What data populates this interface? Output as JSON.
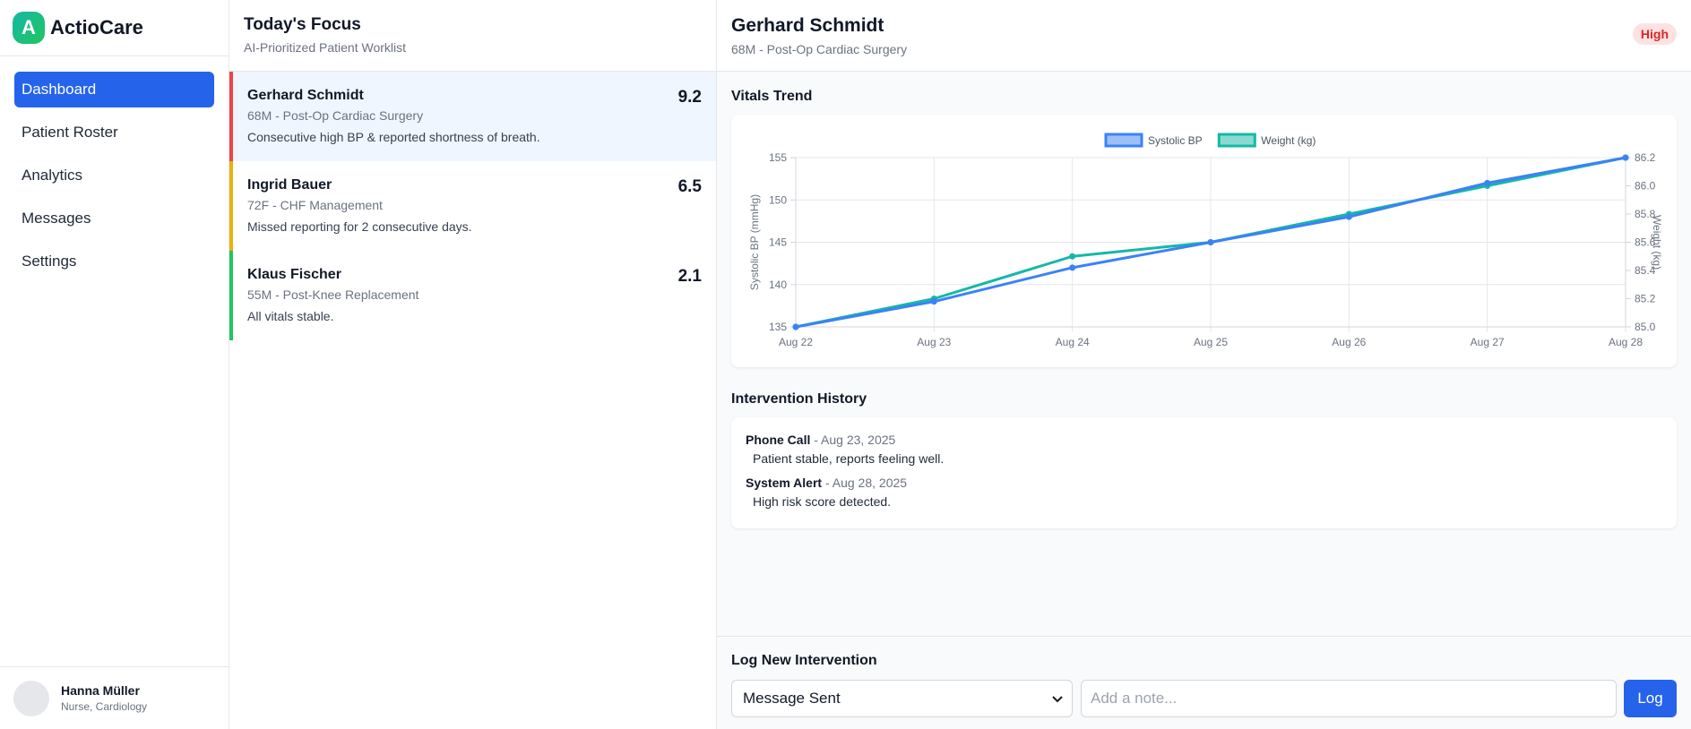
{
  "app": {
    "logo_letter": "A",
    "name": "ActioCare"
  },
  "nav": {
    "items": [
      {
        "label": "Dashboard",
        "active": true
      },
      {
        "label": "Patient Roster",
        "active": false
      },
      {
        "label": "Analytics",
        "active": false
      },
      {
        "label": "Messages",
        "active": false
      },
      {
        "label": "Settings",
        "active": false
      }
    ]
  },
  "user": {
    "name": "Hanna Müller",
    "role": "Nurse, Cardiology"
  },
  "worklist": {
    "title": "Today's Focus",
    "subtitle": "AI-Prioritized Patient Worklist",
    "patients": [
      {
        "name": "Gerhard Schmidt",
        "meta": "68M - Post-Op Cardiac Surgery",
        "note": "Consecutive high BP & reported shortness of breath.",
        "score": "9.2",
        "color": "#ef4444",
        "selected": true
      },
      {
        "name": "Ingrid Bauer",
        "meta": "72F - CHF Management",
        "note": "Missed reporting for 2 consecutive days.",
        "score": "6.5",
        "color": "#eab308",
        "selected": false
      },
      {
        "name": "Klaus Fischer",
        "meta": "55M - Post-Knee Replacement",
        "note": "All vitals stable.",
        "score": "2.1",
        "color": "#22c55e",
        "selected": false
      }
    ]
  },
  "detail": {
    "name": "Gerhard Schmidt",
    "meta": "68M - Post-Op Cardiac Surgery",
    "risk": "High",
    "vitals_title": "Vitals Trend",
    "history_title": "Intervention History",
    "history": [
      {
        "type": "Phone Call",
        "sep": " - ",
        "date": "Aug 23, 2025",
        "note": "Patient stable, reports feeling well."
      },
      {
        "type": "System Alert",
        "sep": " - ",
        "date": "Aug 28, 2025",
        "note": "High risk score detected."
      }
    ]
  },
  "log": {
    "title": "Log New Intervention",
    "selected_type": "Message Sent",
    "note_placeholder": "Add a note...",
    "button": "Log"
  },
  "chart_data": {
    "type": "line",
    "categories": [
      "Aug 22",
      "Aug 23",
      "Aug 24",
      "Aug 25",
      "Aug 26",
      "Aug 27",
      "Aug 28"
    ],
    "series": [
      {
        "name": "Systolic BP",
        "axis": "left",
        "color": "#3b82f6",
        "values": [
          135,
          138,
          142,
          145,
          148,
          152,
          155
        ]
      },
      {
        "name": "Weight (kg)",
        "axis": "right",
        "color": "#14b8a6",
        "values": [
          85.0,
          85.2,
          85.5,
          85.6,
          85.8,
          86.0,
          86.2
        ]
      }
    ],
    "ylabel_left": "Systolic BP (mmHg)",
    "ylabel_right": "Weight (kg)",
    "ylim_left": [
      135,
      155
    ],
    "yticks_left": [
      135,
      140,
      145,
      150,
      155
    ],
    "ylim_right": [
      85.0,
      86.2
    ],
    "yticks_right": [
      "85.0",
      "85.2",
      "85.4",
      "85.6",
      "85.8",
      "86.0",
      "86.2"
    ],
    "legend": "top-center",
    "grid": true
  }
}
